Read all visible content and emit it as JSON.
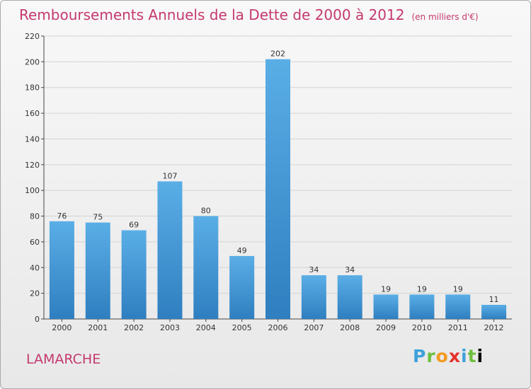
{
  "chart_data": {
    "type": "bar",
    "title": "Remboursements Annuels de la Dette de 2000 à 2012",
    "unit": "(en milliers d'€)",
    "categories": [
      "2000",
      "2001",
      "2002",
      "2003",
      "2004",
      "2005",
      "2006",
      "2007",
      "2008",
      "2009",
      "2010",
      "2011",
      "2012"
    ],
    "values": [
      76,
      75,
      69,
      107,
      80,
      49,
      202,
      34,
      34,
      19,
      19,
      19,
      11
    ],
    "ylim": [
      0,
      220
    ],
    "yticks": [
      0,
      20,
      40,
      60,
      80,
      100,
      120,
      140,
      160,
      180,
      200,
      220
    ],
    "xlabel": "",
    "ylabel": "",
    "grid": true
  },
  "footer": {
    "town": "LAMARCHE",
    "logo_letters": [
      "P",
      "r",
      "o",
      "x",
      "i",
      "t",
      "i"
    ]
  },
  "colors": {
    "bar_top": "#5aaee6",
    "bar_bottom": "#2f7fc0",
    "title": "#c4396f"
  }
}
